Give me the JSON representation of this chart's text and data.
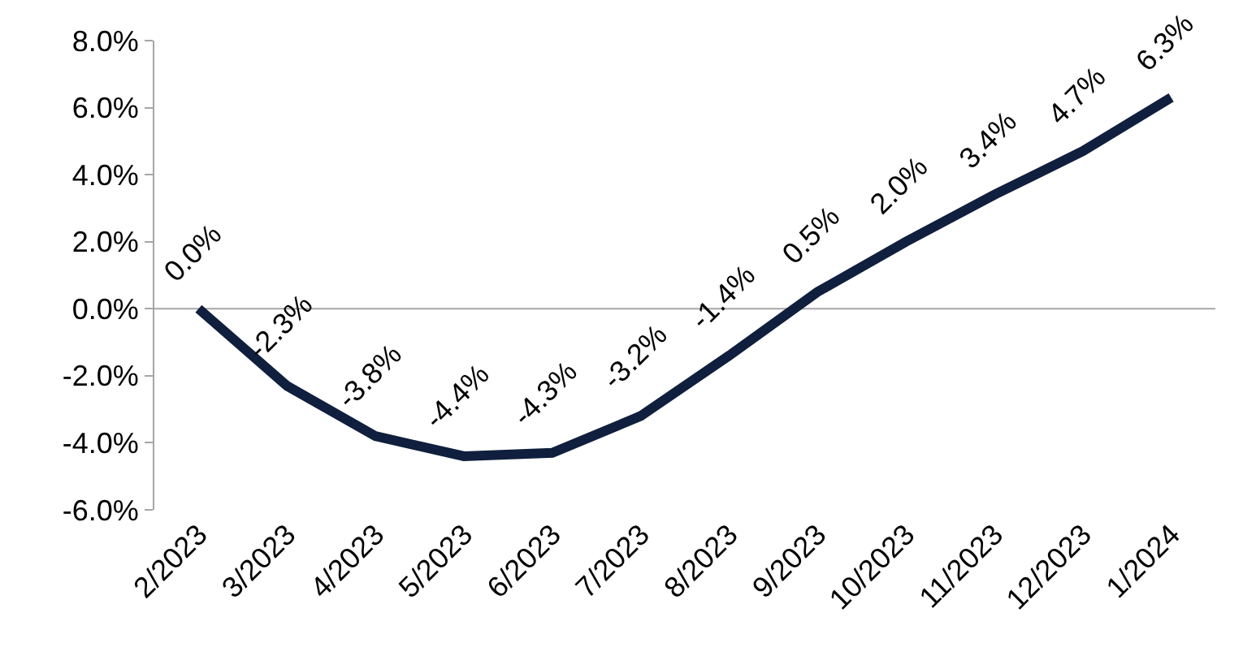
{
  "chart_data": {
    "type": "line",
    "categories": [
      "2/2023",
      "3/2023",
      "4/2023",
      "5/2023",
      "6/2023",
      "7/2023",
      "8/2023",
      "9/2023",
      "10/2023",
      "11/2023",
      "12/2023",
      "1/2024"
    ],
    "series": [
      {
        "color": "#0f1f3d",
        "values": [
          0.0,
          -2.3,
          -3.8,
          -4.4,
          -4.3,
          -3.2,
          -1.4,
          0.5,
          2.0,
          3.4,
          4.7,
          6.3
        ],
        "value_labels": [
          "0.0%",
          "-2.3%",
          "-3.8%",
          "-4.4%",
          "-4.3%",
          "-3.2%",
          "-1.4%",
          "0.5%",
          "2.0%",
          "3.4%",
          "4.7%",
          "6.3%"
        ]
      }
    ],
    "ylim": [
      -6,
      8
    ],
    "yticks": [
      {
        "value": -6,
        "label": "-6.0%"
      },
      {
        "value": -4,
        "label": "-4.0%"
      },
      {
        "value": -2,
        "label": "-2.0%"
      },
      {
        "value": 0,
        "label": "0.0%"
      },
      {
        "value": 2,
        "label": "2.0%"
      },
      {
        "value": 4,
        "label": "4.0%"
      },
      {
        "value": 6,
        "label": "6.0%"
      },
      {
        "value": 8,
        "label": "8.0%"
      }
    ],
    "ref_lines": [
      {
        "axis": "y",
        "value": 0,
        "color": "#a6a6a6"
      }
    ],
    "grid": false,
    "marker": "none",
    "line_style": "solid"
  }
}
